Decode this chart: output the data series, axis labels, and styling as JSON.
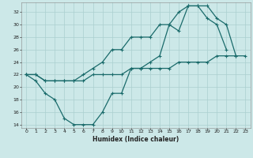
{
  "xlabel": "Humidex (Indice chaleur)",
  "bg_color": "#cce8e8",
  "grid_color": "#aacfcf",
  "line_color": "#1a6b6b",
  "xlim": [
    -0.5,
    23.5
  ],
  "ylim": [
    13.5,
    33.5
  ],
  "xticks": [
    0,
    1,
    2,
    3,
    4,
    5,
    6,
    7,
    8,
    9,
    10,
    11,
    12,
    13,
    14,
    15,
    16,
    17,
    18,
    19,
    20,
    21,
    22,
    23
  ],
  "yticks": [
    14,
    16,
    18,
    20,
    22,
    24,
    26,
    28,
    30,
    32
  ],
  "line1_x": [
    0,
    1,
    2,
    3,
    4,
    5,
    6,
    7,
    8,
    9,
    10,
    11,
    12,
    13,
    14,
    15,
    16,
    17,
    18,
    19,
    20,
    21
  ],
  "line1_y": [
    22,
    21,
    19,
    18,
    15,
    14,
    14,
    14,
    16,
    19,
    19,
    23,
    23,
    24,
    25,
    30,
    29,
    33,
    33,
    31,
    30,
    26
  ],
  "line2_x": [
    0,
    1,
    2,
    3,
    4,
    5,
    6,
    7,
    8,
    9,
    10,
    11,
    12,
    13,
    14,
    15,
    16,
    17,
    18,
    19,
    20,
    21,
    22
  ],
  "line2_y": [
    22,
    22,
    21,
    21,
    21,
    21,
    22,
    23,
    24,
    26,
    26,
    28,
    28,
    28,
    30,
    30,
    32,
    33,
    33,
    33,
    31,
    30,
    25
  ],
  "line3_x": [
    0,
    1,
    2,
    3,
    4,
    5,
    6,
    7,
    8,
    9,
    10,
    11,
    12,
    13,
    14,
    15,
    16,
    17,
    18,
    19,
    20,
    21,
    22,
    23
  ],
  "line3_y": [
    22,
    22,
    21,
    21,
    21,
    21,
    21,
    22,
    22,
    22,
    22,
    23,
    23,
    23,
    23,
    23,
    24,
    24,
    24,
    24,
    25,
    25,
    25,
    25
  ]
}
